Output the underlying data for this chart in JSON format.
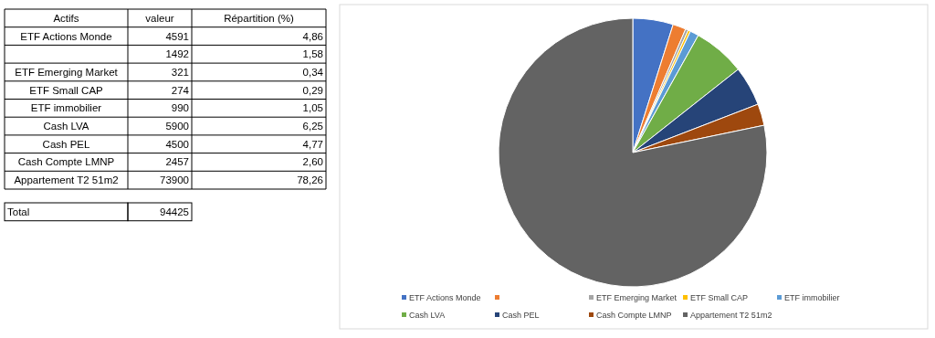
{
  "chart_data": {
    "type": "pie",
    "categories": [
      "ETF Actions Monde",
      null,
      "ETF Emerging Market",
      "ETF Small CAP",
      "ETF immobilier",
      "Cash LVA",
      "Cash PEL",
      "Cash Compte LMNP",
      "Appartement T2 51m2"
    ],
    "values": [
      4.86,
      1.58,
      0.34,
      0.29,
      1.05,
      6.25,
      4.77,
      2.6,
      78.26
    ],
    "colors": [
      "#4472c4",
      "#ed7d31",
      "#a5a5a5",
      "#ffc000",
      "#5b9bd5",
      "#70ad47",
      "#264478",
      "#9e480e",
      "#636363"
    ],
    "legend": "bottom",
    "annotations": [
      "Actifs",
      "valeur",
      "Répartition (%)",
      "4591",
      "1492",
      "321",
      "274",
      "990",
      "5900",
      "4500",
      "2457",
      "73900",
      "4,86",
      "1,58",
      "0,34",
      "0,29",
      "1,05",
      "6,25",
      "4,77",
      "2,60",
      "78,26",
      "Total",
      "94425"
    ]
  }
}
